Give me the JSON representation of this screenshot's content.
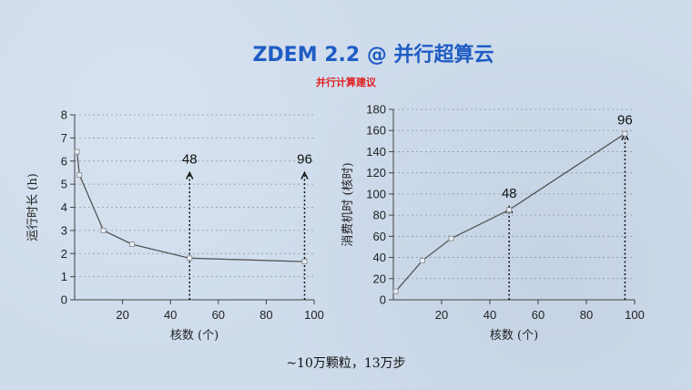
{
  "title": "ZDEM 2.2 @ 并行超算云",
  "subtitle": "并行计算建议",
  "caption": "~10万颗粒，13万步",
  "colors": {
    "title": "#1f5cc4",
    "subtitle": "#e02020",
    "line": "#555555",
    "grid": "#8a97a8"
  },
  "chart_data": [
    {
      "type": "line",
      "xlabel": "核数 (个)",
      "ylabel": "运行时长 (h)",
      "xlim": [
        0,
        100
      ],
      "ylim": [
        0,
        8
      ],
      "xticks": [
        20,
        40,
        60,
        80,
        100
      ],
      "yticks": [
        0,
        1,
        2,
        3,
        4,
        5,
        6,
        7,
        8
      ],
      "grid": "horizontal-dotted",
      "series": [
        {
          "x": [
            1,
            2,
            12,
            24,
            48,
            96
          ],
          "y": [
            6.4,
            5.4,
            3.0,
            2.4,
            1.8,
            1.65
          ]
        }
      ],
      "annotations": [
        {
          "x": 48,
          "label": "48",
          "arrow_top_y": 5.5
        },
        {
          "x": 96,
          "label": "96",
          "arrow_top_y": 5.5
        }
      ]
    },
    {
      "type": "line",
      "xlabel": "核数 (个)",
      "ylabel": "消费机时 (核时)",
      "xlim": [
        0,
        100
      ],
      "ylim": [
        0,
        180
      ],
      "xticks": [
        20,
        40,
        60,
        80,
        100
      ],
      "yticks": [
        0,
        20,
        40,
        60,
        80,
        100,
        120,
        140,
        160,
        180
      ],
      "grid": "horizontal-dotted",
      "series": [
        {
          "x": [
            1,
            12,
            24,
            48,
            96
          ],
          "y": [
            8,
            37,
            58,
            85,
            157
          ]
        }
      ],
      "annotations": [
        {
          "x": 48,
          "label": "48",
          "arrow_top_y": 88
        },
        {
          "x": 96,
          "label": "96",
          "arrow_top_y": 157
        }
      ]
    }
  ]
}
